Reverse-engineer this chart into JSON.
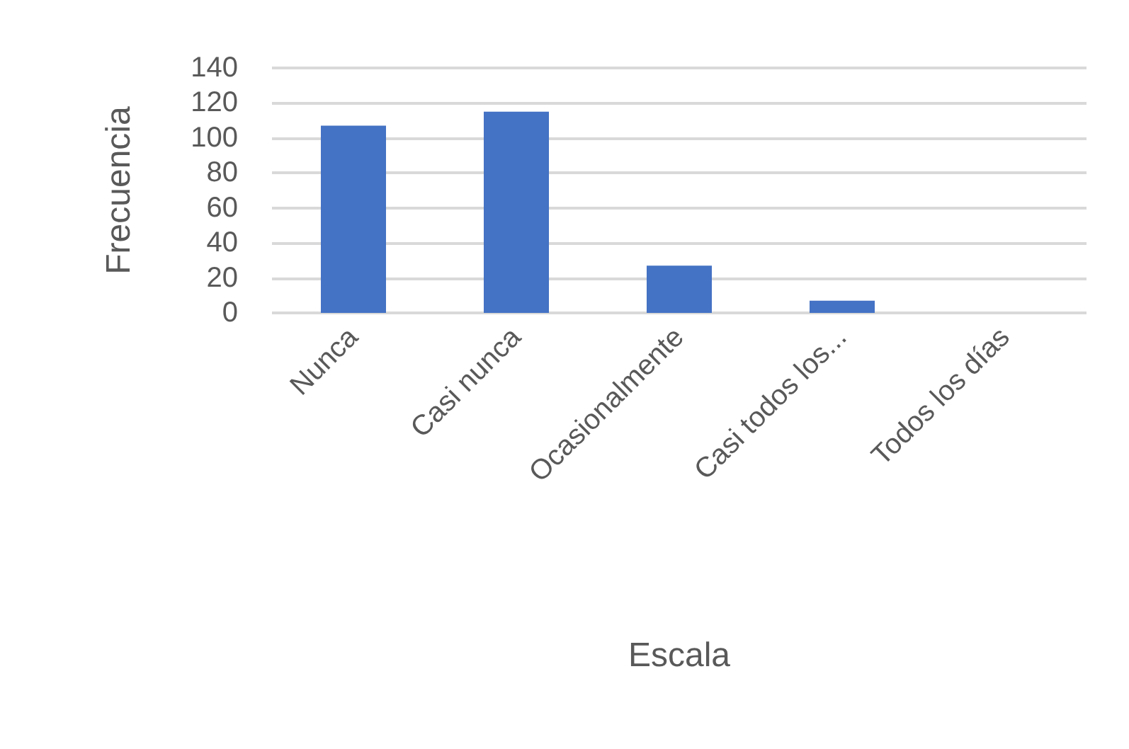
{
  "chart_data": {
    "type": "bar",
    "xlabel": "Escala",
    "ylabel": "Frecuencia",
    "categories": [
      "Nunca",
      "Casi nunca",
      "Ocasionalmente",
      "Casi todos los...",
      "Todos los días"
    ],
    "values": [
      107,
      115,
      27,
      7,
      0
    ],
    "color": "#4472c4",
    "ylim": [
      0,
      140
    ],
    "yticks": [
      0,
      20,
      40,
      60,
      80,
      100,
      120,
      140
    ],
    "grid": "y"
  }
}
